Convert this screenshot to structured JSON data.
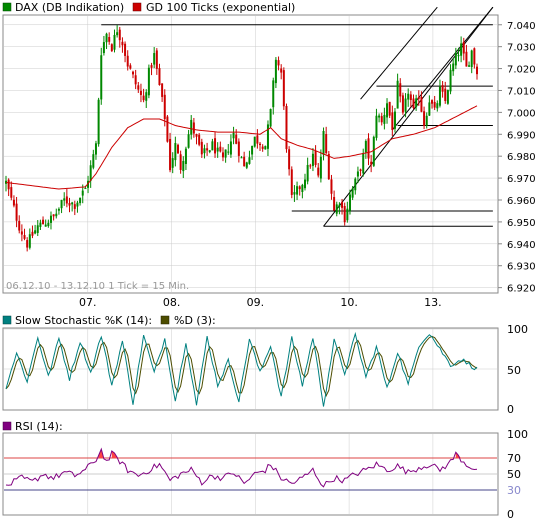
{
  "colors": {
    "up": "#008800",
    "down": "#cc0000",
    "ma": "#cc0000",
    "stoch_k": "#008080",
    "stoch_d": "#4d4d00",
    "rsi": "#800080",
    "rsi_overbought_fill": "#ff4444",
    "line70": "#dd4444",
    "line30": "#444488",
    "frame": "#888888",
    "grid": "#cccccc",
    "trendline": "#000000"
  },
  "main_panel": {
    "legend": [
      {
        "label": "DAX (DB Indikation)",
        "color": "#008800"
      },
      {
        "label": "GD 100 Ticks (exponential)",
        "color": "#cc0000"
      }
    ],
    "info": "06.12.10 - 13.12.10   1 Tick = 15 Min."
  },
  "stoch_panel": {
    "legend": [
      {
        "label": "Slow Stochastic %K (14):",
        "color": "#008080"
      },
      {
        "label": "%D (3):",
        "color": "#4d4d00"
      }
    ],
    "y_ticks": [
      "100",
      "50",
      "0"
    ]
  },
  "rsi_panel": {
    "legend": [
      {
        "label": "RSI (14):",
        "color": "#800080"
      }
    ],
    "y_ticks": [
      {
        "label": "100",
        "value": 100,
        "color": "#000000"
      },
      {
        "label": "70",
        "value": 70,
        "color": "#000000"
      },
      {
        "label": "50",
        "value": 50,
        "color": "#000000"
      },
      {
        "label": "30",
        "value": 30,
        "color": "#8888cc"
      },
      {
        "label": "0",
        "value": 0,
        "color": "#000000"
      }
    ]
  },
  "chart_data": {
    "type": "candlestick",
    "x_tick_labels": [
      "07.",
      "08.",
      "09.",
      "10.",
      "13."
    ],
    "x_tick_positions": [
      0.17,
      0.34,
      0.51,
      0.7,
      0.87
    ],
    "y_ticks": [
      "7.040",
      "7.030",
      "7.020",
      "7.010",
      "7.000",
      "6.990",
      "6.980",
      "6.970",
      "6.960",
      "6.950",
      "6.940",
      "6.930",
      "6.920"
    ],
    "y_tick_values": [
      7040,
      7030,
      7020,
      7010,
      7000,
      6990,
      6980,
      6970,
      6960,
      6950,
      6940,
      6930,
      6920
    ],
    "ylim": [
      6918,
      7044
    ],
    "anchors": [
      [
        0,
        6968
      ],
      [
        5,
        6948
      ],
      [
        8,
        6940
      ],
      [
        12,
        6948
      ],
      [
        18,
        6952
      ],
      [
        22,
        6960
      ],
      [
        26,
        6958
      ],
      [
        30,
        6965
      ],
      [
        34,
        6985
      ],
      [
        36,
        7028
      ],
      [
        38,
        7036
      ],
      [
        40,
        7030
      ],
      [
        42,
        7038
      ],
      [
        44,
        7032
      ],
      [
        46,
        7022
      ],
      [
        48,
        7016
      ],
      [
        50,
        7010
      ],
      [
        52,
        7005
      ],
      [
        54,
        7018
      ],
      [
        56,
        7026
      ],
      [
        58,
        7012
      ],
      [
        60,
        6998
      ],
      [
        62,
        6975
      ],
      [
        64,
        6985
      ],
      [
        66,
        6975
      ],
      [
        70,
        6995
      ],
      [
        74,
        6980
      ],
      [
        78,
        6985
      ],
      [
        82,
        6978
      ],
      [
        86,
        6990
      ],
      [
        90,
        6975
      ],
      [
        94,
        6988
      ],
      [
        98,
        6985
      ],
      [
        100,
        7000
      ],
      [
        102,
        7025
      ],
      [
        104,
        7018
      ],
      [
        106,
        6985
      ],
      [
        108,
        6960
      ],
      [
        112,
        6968
      ],
      [
        116,
        6980
      ],
      [
        118,
        6970
      ],
      [
        120,
        6990
      ],
      [
        122,
        6972
      ],
      [
        124,
        6955
      ],
      [
        126,
        6960
      ],
      [
        128,
        6952
      ],
      [
        130,
        6962
      ],
      [
        132,
        6968
      ],
      [
        134,
        6975
      ],
      [
        136,
        6985
      ],
      [
        138,
        6975
      ],
      [
        140,
        7000
      ],
      [
        142,
        6995
      ],
      [
        144,
        7005
      ],
      [
        146,
        6992
      ],
      [
        148,
        7012
      ],
      [
        150,
        6998
      ],
      [
        152,
        7010
      ],
      [
        154,
        7000
      ],
      [
        156,
        7008
      ],
      [
        158,
        6995
      ],
      [
        160,
        7006
      ],
      [
        162,
        7000
      ],
      [
        164,
        7010
      ],
      [
        166,
        7005
      ],
      [
        168,
        7018
      ],
      [
        170,
        7025
      ],
      [
        172,
        7030
      ],
      [
        174,
        7020
      ],
      [
        176,
        7028
      ],
      [
        178,
        7018
      ]
    ],
    "candles_count": 179,
    "moving_average": {
      "name": "GD 100 Ticks (exponential)",
      "anchors": [
        [
          0,
          6968
        ],
        [
          20,
          6965
        ],
        [
          30,
          6966
        ],
        [
          34,
          6972
        ],
        [
          40,
          6984
        ],
        [
          46,
          6993
        ],
        [
          52,
          6997
        ],
        [
          58,
          6997
        ],
        [
          64,
          6994
        ],
        [
          72,
          6992
        ],
        [
          80,
          6991
        ],
        [
          88,
          6991
        ],
        [
          96,
          6990
        ],
        [
          100,
          6993
        ],
        [
          104,
          6988
        ],
        [
          110,
          6985
        ],
        [
          116,
          6983
        ],
        [
          124,
          6979
        ],
        [
          130,
          6980
        ],
        [
          138,
          6982
        ],
        [
          146,
          6988
        ],
        [
          154,
          6990
        ],
        [
          162,
          6993
        ],
        [
          170,
          6998
        ],
        [
          178,
          7003
        ]
      ]
    },
    "horizontal_lines": [
      {
        "y": 7040,
        "x_from": 36,
        "x_to": 184
      },
      {
        "y": 7012,
        "x_from": 140,
        "x_to": 184
      },
      {
        "y": 6994,
        "x_from": 148,
        "x_to": 184
      },
      {
        "y": 6955,
        "x_from": 108,
        "x_to": 184
      },
      {
        "y": 6948,
        "x_from": 120,
        "x_to": 184
      }
    ],
    "channel_lines": [
      {
        "from": [
          134,
          7006
        ],
        "to": [
          163,
          7048
        ]
      },
      {
        "from": [
          120,
          6948
        ],
        "to": [
          184,
          7048
        ]
      },
      {
        "from": [
          146,
          6992
        ],
        "to": [
          184,
          7048
        ]
      }
    ],
    "stochastic": {
      "k_anchors": [
        [
          0,
          28
        ],
        [
          4,
          70
        ],
        [
          8,
          35
        ],
        [
          12,
          90
        ],
        [
          16,
          40
        ],
        [
          20,
          88
        ],
        [
          24,
          38
        ],
        [
          28,
          85
        ],
        [
          32,
          45
        ],
        [
          36,
          92
        ],
        [
          40,
          30
        ],
        [
          44,
          85
        ],
        [
          48,
          8
        ],
        [
          52,
          92
        ],
        [
          56,
          45
        ],
        [
          60,
          88
        ],
        [
          64,
          10
        ],
        [
          68,
          85
        ],
        [
          72,
          5
        ],
        [
          76,
          90
        ],
        [
          80,
          30
        ],
        [
          84,
          60
        ],
        [
          88,
          10
        ],
        [
          92,
          88
        ],
        [
          96,
          45
        ],
        [
          100,
          80
        ],
        [
          104,
          15
        ],
        [
          108,
          88
        ],
        [
          112,
          30
        ],
        [
          116,
          90
        ],
        [
          120,
          5
        ],
        [
          124,
          85
        ],
        [
          128,
          45
        ],
        [
          132,
          92
        ],
        [
          136,
          40
        ],
        [
          140,
          78
        ],
        [
          144,
          25
        ],
        [
          148,
          72
        ],
        [
          152,
          30
        ],
        [
          156,
          80
        ],
        [
          160,
          95
        ],
        [
          164,
          75
        ],
        [
          168,
          55
        ],
        [
          172,
          62
        ],
        [
          178,
          50
        ]
      ],
      "ylim": [
        0,
        100
      ]
    },
    "rsi": {
      "anchors": [
        [
          0,
          35
        ],
        [
          6,
          45
        ],
        [
          10,
          40
        ],
        [
          14,
          50
        ],
        [
          18,
          45
        ],
        [
          22,
          52
        ],
        [
          26,
          48
        ],
        [
          30,
          55
        ],
        [
          34,
          68
        ],
        [
          36,
          80
        ],
        [
          38,
          65
        ],
        [
          40,
          75
        ],
        [
          42,
          70
        ],
        [
          46,
          55
        ],
        [
          50,
          48
        ],
        [
          54,
          55
        ],
        [
          58,
          62
        ],
        [
          62,
          42
        ],
        [
          66,
          50
        ],
        [
          70,
          55
        ],
        [
          74,
          40
        ],
        [
          78,
          48
        ],
        [
          82,
          45
        ],
        [
          86,
          52
        ],
        [
          90,
          38
        ],
        [
          94,
          50
        ],
        [
          98,
          55
        ],
        [
          100,
          62
        ],
        [
          104,
          45
        ],
        [
          108,
          38
        ],
        [
          112,
          45
        ],
        [
          116,
          55
        ],
        [
          120,
          35
        ],
        [
          124,
          45
        ],
        [
          128,
          42
        ],
        [
          132,
          50
        ],
        [
          136,
          55
        ],
        [
          140,
          62
        ],
        [
          144,
          55
        ],
        [
          148,
          60
        ],
        [
          152,
          52
        ],
        [
          156,
          58
        ],
        [
          160,
          62
        ],
        [
          164,
          55
        ],
        [
          168,
          65
        ],
        [
          170,
          75
        ],
        [
          174,
          62
        ],
        [
          178,
          55
        ]
      ],
      "ylim": [
        0,
        100
      ],
      "levels": [
        70,
        50,
        30
      ]
    }
  }
}
